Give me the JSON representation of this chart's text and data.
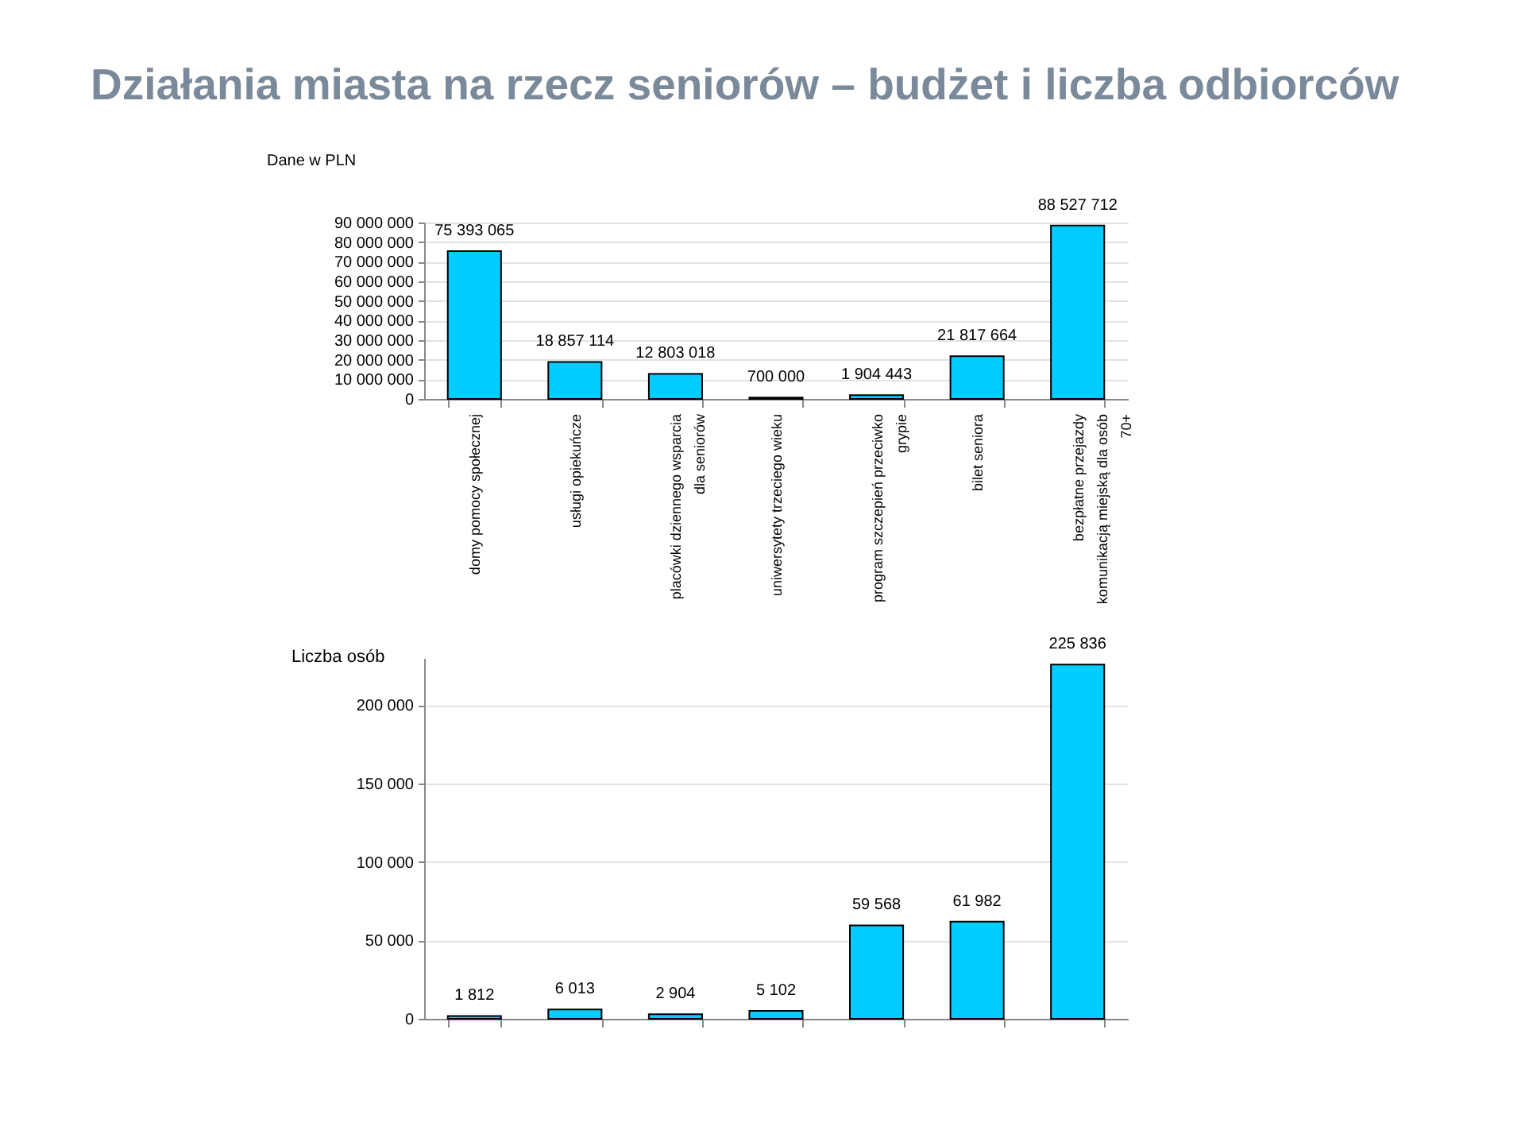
{
  "chart_data": [
    {
      "type": "bar",
      "title": "Działania miasta na rzecz seniorów – budżet i liczba odbiorców",
      "subtitle": "Dane w PLN",
      "categories": [
        "domy pomocy społecznej",
        "usługi opiekuńcze",
        "placówki dziennego wsparcia dla seniorów",
        "uniwersytety trzeciego wieku",
        "program szczepień przeciwko grypie",
        "bilet seniora",
        "bezpłatne przejazdy komunikacją miejską dla osób 70+"
      ],
      "values": [
        75393065,
        18857114,
        12803018,
        700000,
        1904443,
        21817664,
        88527712
      ],
      "value_labels": [
        "75 393 065",
        "18 857 114",
        "12 803 018",
        "700 000",
        "1 904 443",
        "21 817 664",
        "88 527 712"
      ],
      "color": "#00ccff",
      "ylim": [
        0,
        90000000
      ],
      "yticks": [
        0,
        {
          "value": 10000000,
          "label": "10 000 000"
        },
        {
          "value": 20000000,
          "label": "20 000 000"
        },
        {
          "value": 30000000,
          "label": "30 000 000"
        },
        {
          "value": 40000000,
          "label": "40 000 000"
        },
        {
          "value": 50000000,
          "label": "50 000 000"
        },
        {
          "value": 60000000,
          "label": "60 000 000"
        },
        {
          "value": 70000000,
          "label": "70 000 000"
        },
        {
          "value": 80000000,
          "label": "80 000 000"
        },
        {
          "value": 90000000,
          "label": "90 000 000"
        }
      ],
      "grid": "y"
    },
    {
      "type": "bar",
      "ylabel": "Liczba osób",
      "categories": [
        null,
        null,
        null,
        null,
        null,
        null,
        null
      ],
      "values": [
        1812,
        6013,
        2904,
        5102,
        59568,
        61982,
        225836
      ],
      "value_labels": [
        "1 812",
        "6 013",
        "2 904",
        "5 102",
        "59 568",
        "61 982",
        "225 836"
      ],
      "color": "#00ccff",
      "ylim": [
        0,
        230000
      ],
      "yticks": [
        0,
        {
          "value": 50000,
          "label": "50 000"
        },
        {
          "value": 100000,
          "label": "100 000"
        },
        {
          "value": 150000,
          "label": "150 000"
        },
        {
          "value": 200000,
          "label": "200 000"
        }
      ],
      "grid": "y"
    }
  ]
}
